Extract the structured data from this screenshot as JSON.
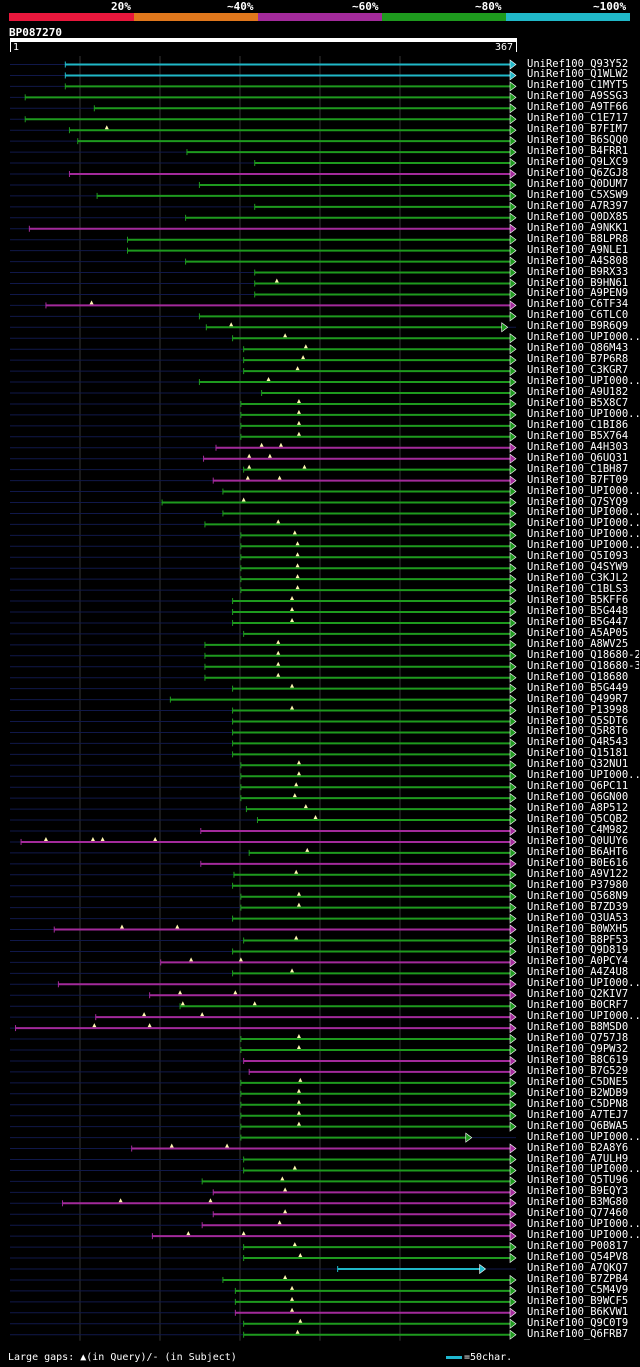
{
  "legend": {
    "labels": [
      "20%",
      "~40%",
      "~60%",
      "~80%",
      "~100%"
    ],
    "colors": [
      "#e8173c",
      "#e0771c",
      "#a32a9b",
      "#1e9a1e",
      "#20b8c8"
    ]
  },
  "query": {
    "name": "BP087270",
    "start_label": "1",
    "end_label": "367",
    "length": 367
  },
  "hits": [
    {
      "name": "UniRef100_Q93Y52",
      "start": 41,
      "end": 367,
      "color": "cyan",
      "gaps": []
    },
    {
      "name": "UniRef100_Q1WLW2",
      "start": 41,
      "end": 367,
      "color": "cyan",
      "gaps": []
    },
    {
      "name": "UniRef100_C1MYT5",
      "start": 41,
      "end": 367,
      "color": "green",
      "gaps": []
    },
    {
      "name": "UniRef100_A9SSG3",
      "start": 12,
      "end": 367,
      "color": "green",
      "gaps": []
    },
    {
      "name": "UniRef100_A9TF66",
      "start": 62,
      "end": 367,
      "color": "green",
      "gaps": []
    },
    {
      "name": "UniRef100_C1E717",
      "start": 12,
      "end": 367,
      "color": "green",
      "gaps": []
    },
    {
      "name": "UniRef100_B7FIM7",
      "start": 44,
      "end": 367,
      "color": "green",
      "gaps": [
        71
      ]
    },
    {
      "name": "UniRef100_B6SQQ0",
      "start": 50,
      "end": 367,
      "color": "green",
      "gaps": []
    },
    {
      "name": "UniRef100_B4FRR1",
      "start": 129,
      "end": 367,
      "color": "green",
      "gaps": []
    },
    {
      "name": "UniRef100_Q9LXC9",
      "start": 178,
      "end": 367,
      "color": "green",
      "gaps": []
    },
    {
      "name": "UniRef100_Q6ZGJ8",
      "start": 44,
      "end": 367,
      "color": "purple",
      "gaps": []
    },
    {
      "name": "UniRef100_Q0DUM7",
      "start": 138,
      "end": 367,
      "color": "green",
      "gaps": []
    },
    {
      "name": "UniRef100_C5XSW9",
      "start": 64,
      "end": 367,
      "color": "green",
      "gaps": []
    },
    {
      "name": "UniRef100_A7R397",
      "start": 178,
      "end": 367,
      "color": "green",
      "gaps": []
    },
    {
      "name": "UniRef100_Q0DX85",
      "start": 128,
      "end": 367,
      "color": "green",
      "gaps": []
    },
    {
      "name": "UniRef100_A9NKK1",
      "start": 15,
      "end": 367,
      "color": "purple",
      "gaps": []
    },
    {
      "name": "UniRef100_B8LPR8",
      "start": 86,
      "end": 367,
      "color": "green",
      "gaps": []
    },
    {
      "name": "UniRef100_A9NLE1",
      "start": 86,
      "end": 367,
      "color": "green",
      "gaps": []
    },
    {
      "name": "UniRef100_A4S808",
      "start": 128,
      "end": 367,
      "color": "green",
      "gaps": []
    },
    {
      "name": "UniRef100_B9RX33",
      "start": 178,
      "end": 367,
      "color": "green",
      "gaps": []
    },
    {
      "name": "UniRef100_B9HN61",
      "start": 178,
      "end": 367,
      "color": "green",
      "gaps": [
        194
      ]
    },
    {
      "name": "UniRef100_A9PEN9",
      "start": 178,
      "end": 367,
      "color": "green",
      "gaps": []
    },
    {
      "name": "UniRef100_C6TF34",
      "start": 27,
      "end": 367,
      "color": "purple",
      "gaps": [
        60
      ]
    },
    {
      "name": "UniRef100_C6TLC0",
      "start": 138,
      "end": 367,
      "color": "green",
      "gaps": []
    },
    {
      "name": "UniRef100_B9R6Q9",
      "start": 143,
      "end": 361,
      "color": "green",
      "gaps": [
        161
      ]
    },
    {
      "name": "UniRef100_UPI000..",
      "start": 162,
      "end": 367,
      "color": "green",
      "gaps": [
        200
      ]
    },
    {
      "name": "UniRef100_Q86M43",
      "start": 170,
      "end": 367,
      "color": "green",
      "gaps": [
        215
      ]
    },
    {
      "name": "UniRef100_B7P6R8",
      "start": 170,
      "end": 367,
      "color": "green",
      "gaps": [
        213
      ]
    },
    {
      "name": "UniRef100_C3KGR7",
      "start": 170,
      "end": 367,
      "color": "green",
      "gaps": [
        209
      ]
    },
    {
      "name": "UniRef100_UPI000..",
      "start": 138,
      "end": 367,
      "color": "green",
      "gaps": [
        188
      ]
    },
    {
      "name": "UniRef100_A9U182",
      "start": 183,
      "end": 367,
      "color": "green",
      "gaps": []
    },
    {
      "name": "UniRef100_B5X8C7",
      "start": 168,
      "end": 367,
      "color": "green",
      "gaps": [
        210
      ]
    },
    {
      "name": "UniRef100_UPI000..",
      "start": 168,
      "end": 367,
      "color": "green",
      "gaps": [
        210
      ]
    },
    {
      "name": "UniRef100_C1BI86",
      "start": 168,
      "end": 367,
      "color": "green",
      "gaps": [
        210
      ]
    },
    {
      "name": "UniRef100_B5X764",
      "start": 168,
      "end": 367,
      "color": "green",
      "gaps": [
        210
      ]
    },
    {
      "name": "UniRef100_A4H303",
      "start": 150,
      "end": 367,
      "color": "purple",
      "gaps": [
        183,
        197
      ]
    },
    {
      "name": "UniRef100_Q6UQ31",
      "start": 141,
      "end": 367,
      "color": "purple",
      "gaps": [
        174,
        189
      ]
    },
    {
      "name": "UniRef100_C1BH87",
      "start": 170,
      "end": 367,
      "color": "green",
      "gaps": [
        174,
        214
      ]
    },
    {
      "name": "UniRef100_B7FT09",
      "start": 148,
      "end": 367,
      "color": "purple",
      "gaps": [
        173,
        196
      ]
    },
    {
      "name": "UniRef100_UPI000..",
      "start": 155,
      "end": 367,
      "color": "green",
      "gaps": []
    },
    {
      "name": "UniRef100_Q7SYQ9",
      "start": 111,
      "end": 367,
      "color": "green",
      "gaps": [
        170
      ]
    },
    {
      "name": "UniRef100_UPI000..",
      "start": 155,
      "end": 367,
      "color": "green",
      "gaps": []
    },
    {
      "name": "UniRef100_UPI000..",
      "start": 142,
      "end": 367,
      "color": "green",
      "gaps": [
        195
      ]
    },
    {
      "name": "UniRef100_UPI000..",
      "start": 168,
      "end": 367,
      "color": "green",
      "gaps": [
        207
      ]
    },
    {
      "name": "UniRef100_UPI000..",
      "start": 168,
      "end": 367,
      "color": "green",
      "gaps": [
        209
      ]
    },
    {
      "name": "UniRef100_Q5I093",
      "start": 168,
      "end": 367,
      "color": "green",
      "gaps": [
        209
      ]
    },
    {
      "name": "UniRef100_Q4SYW9",
      "start": 168,
      "end": 367,
      "color": "green",
      "gaps": [
        209
      ]
    },
    {
      "name": "UniRef100_C3KJL2",
      "start": 168,
      "end": 367,
      "color": "green",
      "gaps": [
        209
      ]
    },
    {
      "name": "UniRef100_C1BLS3",
      "start": 168,
      "end": 367,
      "color": "green",
      "gaps": [
        209
      ]
    },
    {
      "name": "UniRef100_B5KFF6",
      "start": 162,
      "end": 367,
      "color": "green",
      "gaps": [
        205
      ]
    },
    {
      "name": "UniRef100_B5G448",
      "start": 162,
      "end": 367,
      "color": "green",
      "gaps": [
        205
      ]
    },
    {
      "name": "UniRef100_B5G447",
      "start": 162,
      "end": 367,
      "color": "green",
      "gaps": [
        205
      ]
    },
    {
      "name": "UniRef100_A5AP05",
      "start": 170,
      "end": 367,
      "color": "green",
      "gaps": []
    },
    {
      "name": "UniRef100_A8WV25",
      "start": 142,
      "end": 367,
      "color": "green",
      "gaps": [
        195
      ]
    },
    {
      "name": "UniRef100_Q18680-2",
      "start": 142,
      "end": 367,
      "color": "green",
      "gaps": [
        195
      ]
    },
    {
      "name": "UniRef100_Q18680-3",
      "start": 142,
      "end": 367,
      "color": "green",
      "gaps": [
        195
      ]
    },
    {
      "name": "UniRef100_Q18680",
      "start": 142,
      "end": 367,
      "color": "green",
      "gaps": [
        195
      ]
    },
    {
      "name": "UniRef100_B5G449",
      "start": 162,
      "end": 367,
      "color": "green",
      "gaps": [
        205
      ]
    },
    {
      "name": "UniRef100_Q499R7",
      "start": 117,
      "end": 367,
      "color": "green",
      "gaps": []
    },
    {
      "name": "UniRef100_P13998",
      "start": 162,
      "end": 367,
      "color": "green",
      "gaps": [
        205
      ]
    },
    {
      "name": "UniRef100_Q5SDT6",
      "start": 162,
      "end": 367,
      "color": "green",
      "gaps": []
    },
    {
      "name": "UniRef100_Q5R8T6",
      "start": 162,
      "end": 367,
      "color": "green",
      "gaps": []
    },
    {
      "name": "UniRef100_Q4R543",
      "start": 162,
      "end": 367,
      "color": "green",
      "gaps": []
    },
    {
      "name": "UniRef100_Q15181",
      "start": 162,
      "end": 367,
      "color": "green",
      "gaps": []
    },
    {
      "name": "UniRef100_Q32NU1",
      "start": 168,
      "end": 367,
      "color": "green",
      "gaps": [
        210
      ]
    },
    {
      "name": "UniRef100_UPI000..",
      "start": 168,
      "end": 367,
      "color": "green",
      "gaps": [
        210
      ]
    },
    {
      "name": "UniRef100_Q6PC11",
      "start": 168,
      "end": 367,
      "color": "green",
      "gaps": [
        208
      ]
    },
    {
      "name": "UniRef100_Q6GN00",
      "start": 168,
      "end": 367,
      "color": "green",
      "gaps": [
        207
      ]
    },
    {
      "name": "UniRef100_A8P512",
      "start": 172,
      "end": 367,
      "color": "green",
      "gaps": [
        215
      ]
    },
    {
      "name": "UniRef100_Q5CQB2",
      "start": 180,
      "end": 367,
      "color": "green",
      "gaps": [
        222
      ]
    },
    {
      "name": "UniRef100_C4M982",
      "start": 139,
      "end": 367,
      "color": "purple",
      "gaps": []
    },
    {
      "name": "UniRef100_Q0UUY6",
      "start": 9,
      "end": 367,
      "color": "purple",
      "gaps": [
        27,
        61,
        68,
        106
      ]
    },
    {
      "name": "UniRef100_B6AHT6",
      "start": 174,
      "end": 367,
      "color": "green",
      "gaps": [
        216
      ]
    },
    {
      "name": "UniRef100_B0E616",
      "start": 139,
      "end": 367,
      "color": "purple",
      "gaps": []
    },
    {
      "name": "UniRef100_A9V122",
      "start": 163,
      "end": 367,
      "color": "green",
      "gaps": [
        208
      ]
    },
    {
      "name": "UniRef100_P37980",
      "start": 162,
      "end": 367,
      "color": "green",
      "gaps": []
    },
    {
      "name": "UniRef100_Q568N9",
      "start": 168,
      "end": 367,
      "color": "green",
      "gaps": [
        210
      ]
    },
    {
      "name": "UniRef100_B7ZD39",
      "start": 168,
      "end": 367,
      "color": "green",
      "gaps": [
        210
      ]
    },
    {
      "name": "UniRef100_Q3UA53",
      "start": 162,
      "end": 367,
      "color": "green",
      "gaps": []
    },
    {
      "name": "UniRef100_B0WXH5",
      "start": 33,
      "end": 367,
      "color": "purple",
      "gaps": [
        82,
        122
      ]
    },
    {
      "name": "UniRef100_B8PF53",
      "start": 170,
      "end": 367,
      "color": "green",
      "gaps": [
        208
      ]
    },
    {
      "name": "UniRef100_Q9D819",
      "start": 162,
      "end": 367,
      "color": "green",
      "gaps": []
    },
    {
      "name": "UniRef100_A0PCY4",
      "start": 110,
      "end": 367,
      "color": "purple",
      "gaps": [
        132,
        168
      ]
    },
    {
      "name": "UniRef100_A4Z4U8",
      "start": 162,
      "end": 367,
      "color": "green",
      "gaps": [
        205
      ]
    },
    {
      "name": "UniRef100_UPI000..",
      "start": 36,
      "end": 367,
      "color": "purple",
      "gaps": []
    },
    {
      "name": "UniRef100_Q2KIV7",
      "start": 102,
      "end": 367,
      "color": "purple",
      "gaps": [
        124,
        164
      ]
    },
    {
      "name": "UniRef100_B0CRF7",
      "start": 124,
      "end": 367,
      "color": "green",
      "gaps": [
        126,
        178
      ]
    },
    {
      "name": "UniRef100_UPI000..",
      "start": 63,
      "end": 367,
      "color": "purple",
      "gaps": [
        98,
        140
      ]
    },
    {
      "name": "UniRef100_B8MSD0",
      "start": 5,
      "end": 367,
      "color": "purple",
      "gaps": [
        62,
        102
      ]
    },
    {
      "name": "UniRef100_Q757J8",
      "start": 168,
      "end": 367,
      "color": "green",
      "gaps": [
        210
      ]
    },
    {
      "name": "UniRef100_Q9PW32",
      "start": 168,
      "end": 367,
      "color": "green",
      "gaps": [
        210
      ]
    },
    {
      "name": "UniRef100_B8C619",
      "start": 170,
      "end": 367,
      "color": "purple",
      "gaps": []
    },
    {
      "name": "UniRef100_B7G529",
      "start": 174,
      "end": 367,
      "color": "purple",
      "gaps": []
    },
    {
      "name": "UniRef100_C5DNE5",
      "start": 168,
      "end": 367,
      "color": "green",
      "gaps": [
        211
      ]
    },
    {
      "name": "UniRef100_B2WDB9",
      "start": 168,
      "end": 367,
      "color": "green",
      "gaps": [
        210
      ]
    },
    {
      "name": "UniRef100_C5DPN8",
      "start": 168,
      "end": 367,
      "color": "green",
      "gaps": [
        210
      ]
    },
    {
      "name": "UniRef100_A7TEJ7",
      "start": 168,
      "end": 367,
      "color": "green",
      "gaps": [
        210
      ]
    },
    {
      "name": "UniRef100_Q6BWA5",
      "start": 168,
      "end": 367,
      "color": "green",
      "gaps": [
        210
      ]
    },
    {
      "name": "UniRef100_UPI000..",
      "start": 168,
      "end": 335,
      "color": "green",
      "gaps": []
    },
    {
      "name": "UniRef100_B2A8Y6",
      "start": 89,
      "end": 367,
      "color": "purple",
      "gaps": [
        118,
        158
      ]
    },
    {
      "name": "UniRef100_A7ULH9",
      "start": 170,
      "end": 367,
      "color": "green",
      "gaps": []
    },
    {
      "name": "UniRef100_UPI000..",
      "start": 170,
      "end": 367,
      "color": "green",
      "gaps": [
        207
      ]
    },
    {
      "name": "UniRef100_Q5TU96",
      "start": 140,
      "end": 367,
      "color": "green",
      "gaps": [
        198
      ]
    },
    {
      "name": "UniRef100_B9EQY3",
      "start": 148,
      "end": 367,
      "color": "purple",
      "gaps": [
        200
      ]
    },
    {
      "name": "UniRef100_B3MG80",
      "start": 39,
      "end": 367,
      "color": "purple",
      "gaps": [
        81,
        146
      ]
    },
    {
      "name": "UniRef100_Q77460",
      "start": 148,
      "end": 367,
      "color": "purple",
      "gaps": [
        200
      ]
    },
    {
      "name": "UniRef100_UPI000..",
      "start": 140,
      "end": 367,
      "color": "purple",
      "gaps": [
        196
      ]
    },
    {
      "name": "UniRef100_UPI000..",
      "start": 104,
      "end": 367,
      "color": "purple",
      "gaps": [
        130,
        170
      ]
    },
    {
      "name": "UniRef100_P00817",
      "start": 170,
      "end": 367,
      "color": "green",
      "gaps": [
        207
      ]
    },
    {
      "name": "UniRef100_Q54PV8",
      "start": 170,
      "end": 367,
      "color": "green",
      "gaps": [
        211
      ]
    },
    {
      "name": "UniRef100_A7QKQ7",
      "start": 238,
      "end": 345,
      "color": "cyan",
      "gaps": []
    },
    {
      "name": "UniRef100_B7ZPB4",
      "start": 155,
      "end": 367,
      "color": "green",
      "gaps": [
        200
      ]
    },
    {
      "name": "UniRef100_C5M4V9",
      "start": 164,
      "end": 367,
      "color": "green",
      "gaps": [
        205
      ]
    },
    {
      "name": "UniRef100_B9WCF5",
      "start": 164,
      "end": 367,
      "color": "green",
      "gaps": [
        205
      ]
    },
    {
      "name": "UniRef100_B6KVW1",
      "start": 164,
      "end": 367,
      "color": "purple",
      "gaps": [
        205
      ]
    },
    {
      "name": "UniRef100_Q9C0T9",
      "start": 170,
      "end": 367,
      "color": "green",
      "gaps": [
        211
      ]
    },
    {
      "name": "UniRef100_Q6FRB7",
      "start": 170,
      "end": 367,
      "color": "green",
      "gaps": [
        209
      ]
    }
  ],
  "footer": {
    "gaps_text": "Large gaps: ▲(in Query)/- (in Subject)",
    "scale_text": "=50char."
  }
}
